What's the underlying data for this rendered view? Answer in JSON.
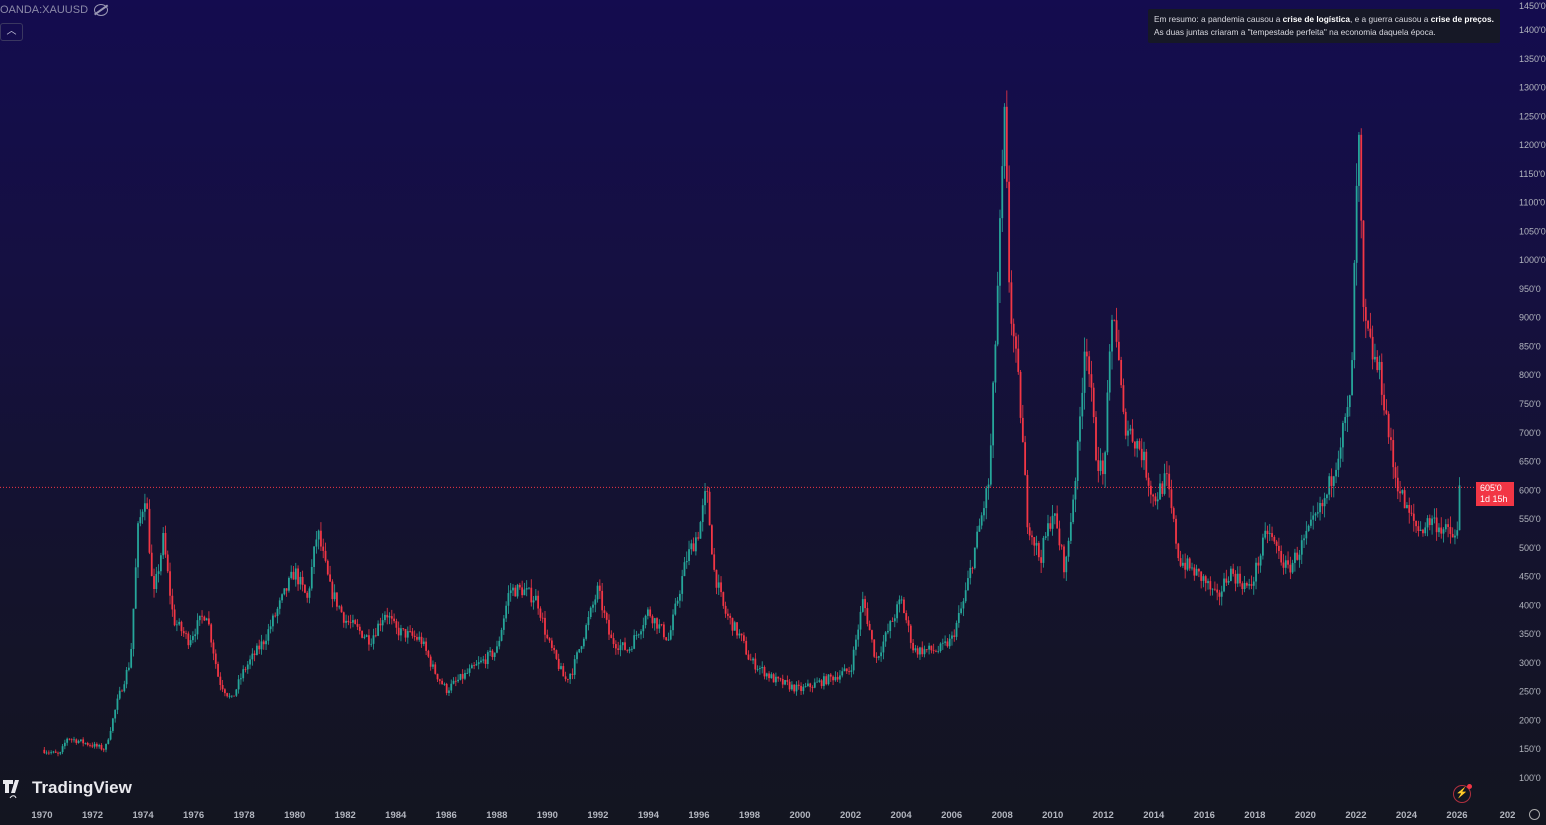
{
  "header": {
    "symbol": "OANDA:XAUUSD",
    "collapse_icon": "chevron-up-icon",
    "visibility_icon": "eye-off-icon"
  },
  "note": {
    "part1": "Em resumo: a pandemia causou a ",
    "bold1": "crise de logística",
    "part2": ", e a guerra causou a ",
    "bold2": "crise de preços.",
    "part3": " As duas juntas criaram a \"tempestade perfeita\" na economia daquela época."
  },
  "logo": {
    "text": "TradingView"
  },
  "price_label": {
    "value": "605'0",
    "countdown": "1d 15h"
  },
  "colors": {
    "up": "#26a69a",
    "down": "#f23645",
    "price_line": "#f23645"
  },
  "chart_data": {
    "type": "candlestick",
    "title": "",
    "x_ticks": [
      "1970",
      "1972",
      "1974",
      "1976",
      "1978",
      "1980",
      "1982",
      "1984",
      "1986",
      "1988",
      "1990",
      "1992",
      "1994",
      "1996",
      "1998",
      "2000",
      "2002",
      "2004",
      "2006",
      "2008",
      "2010",
      "2012",
      "2014",
      "2016",
      "2018",
      "2020",
      "2022",
      "2024",
      "2026",
      "202"
    ],
    "y_ticks": [
      "100'0",
      "150'0",
      "200'0",
      "250'0",
      "300'0",
      "350'0",
      "400'0",
      "450'0",
      "500'0",
      "550'0",
      "600'0",
      "650'0",
      "700'0",
      "750'0",
      "800'0",
      "850'0",
      "900'0",
      "950'0",
      "1000'0",
      "1050'0",
      "1100'0",
      "1150'0",
      "1200'0",
      "1250'0",
      "1300'0",
      "1350'0",
      "1400'0",
      "1450'0"
    ],
    "ylim": [
      100,
      1450
    ],
    "xlim": [
      1970,
      2028
    ],
    "current_price": 605,
    "approx_path": [
      [
        1970.0,
        149
      ],
      [
        1970.7,
        140
      ],
      [
        1971,
        170
      ],
      [
        1972,
        157
      ],
      [
        1972.5,
        150
      ],
      [
        1973,
        235
      ],
      [
        1973.5,
        305
      ],
      [
        1973.8,
        530
      ],
      [
        1974.1,
        600
      ],
      [
        1974.4,
        410
      ],
      [
        1974.8,
        515
      ],
      [
        1975.2,
        375
      ],
      [
        1975.8,
        340
      ],
      [
        1976.5,
        390
      ],
      [
        1977,
        270
      ],
      [
        1977.5,
        235
      ],
      [
        1978,
        288
      ],
      [
        1978.8,
        340
      ],
      [
        1979.5,
        410
      ],
      [
        1980,
        460
      ],
      [
        1980.5,
        410
      ],
      [
        1980.9,
        530
      ],
      [
        1981.4,
        430
      ],
      [
        1982,
        375
      ],
      [
        1983,
        340
      ],
      [
        1983.6,
        390
      ],
      [
        1984,
        357
      ],
      [
        1985,
        340
      ],
      [
        1985.5,
        288
      ],
      [
        1986,
        253
      ],
      [
        1987,
        288
      ],
      [
        1988,
        322
      ],
      [
        1988.5,
        427
      ],
      [
        1989,
        427
      ],
      [
        1989.6,
        410
      ],
      [
        1990,
        340
      ],
      [
        1990.7,
        270
      ],
      [
        1991,
        288
      ],
      [
        1992,
        427
      ],
      [
        1992.5,
        340
      ],
      [
        1993.2,
        322
      ],
      [
        1994,
        390
      ],
      [
        1994.8,
        340
      ],
      [
        1995.5,
        480
      ],
      [
        1996,
        530
      ],
      [
        1996.3,
        600
      ],
      [
        1996.6,
        460
      ],
      [
        1997,
        390
      ],
      [
        1997.7,
        340
      ],
      [
        1998,
        305
      ],
      [
        1999,
        270
      ],
      [
        2000,
        253
      ],
      [
        2001,
        270
      ],
      [
        2002,
        288
      ],
      [
        2002.5,
        410
      ],
      [
        2003,
        305
      ],
      [
        2004,
        410
      ],
      [
        2004.5,
        322
      ],
      [
        2005.5,
        322
      ],
      [
        2006,
        340
      ],
      [
        2006.5,
        410
      ],
      [
        2007,
        515
      ],
      [
        2007.5,
        620
      ],
      [
        2007.8,
        930
      ],
      [
        2008.1,
        1245
      ],
      [
        2008.3,
        930
      ],
      [
        2008.7,
        757
      ],
      [
        2009,
        550
      ],
      [
        2009.5,
        480
      ],
      [
        2010,
        565
      ],
      [
        2010.5,
        460
      ],
      [
        2011,
        670
      ],
      [
        2011.3,
        880
      ],
      [
        2011.7,
        670
      ],
      [
        2012,
        620
      ],
      [
        2012.4,
        930
      ],
      [
        2012.8,
        722
      ],
      [
        2013.5,
        670
      ],
      [
        2014,
        583
      ],
      [
        2014.5,
        620
      ],
      [
        2015,
        480
      ],
      [
        2016,
        444
      ],
      [
        2016.5,
        410
      ],
      [
        2017,
        460
      ],
      [
        2017.8,
        427
      ],
      [
        2018.5,
        530
      ],
      [
        2019.3,
        460
      ],
      [
        2020,
        515
      ],
      [
        2020.8,
        583
      ],
      [
        2021.3,
        670
      ],
      [
        2021.8,
        757
      ],
      [
        2022.1,
        1227
      ],
      [
        2022.3,
        896
      ],
      [
        2022.6,
        844
      ],
      [
        2023,
        792
      ],
      [
        2023.5,
        635
      ],
      [
        2024,
        565
      ],
      [
        2024.5,
        530
      ],
      [
        2025,
        550
      ],
      [
        2025.5,
        530
      ],
      [
        2026,
        515
      ],
      [
        2026.1,
        605
      ]
    ]
  }
}
